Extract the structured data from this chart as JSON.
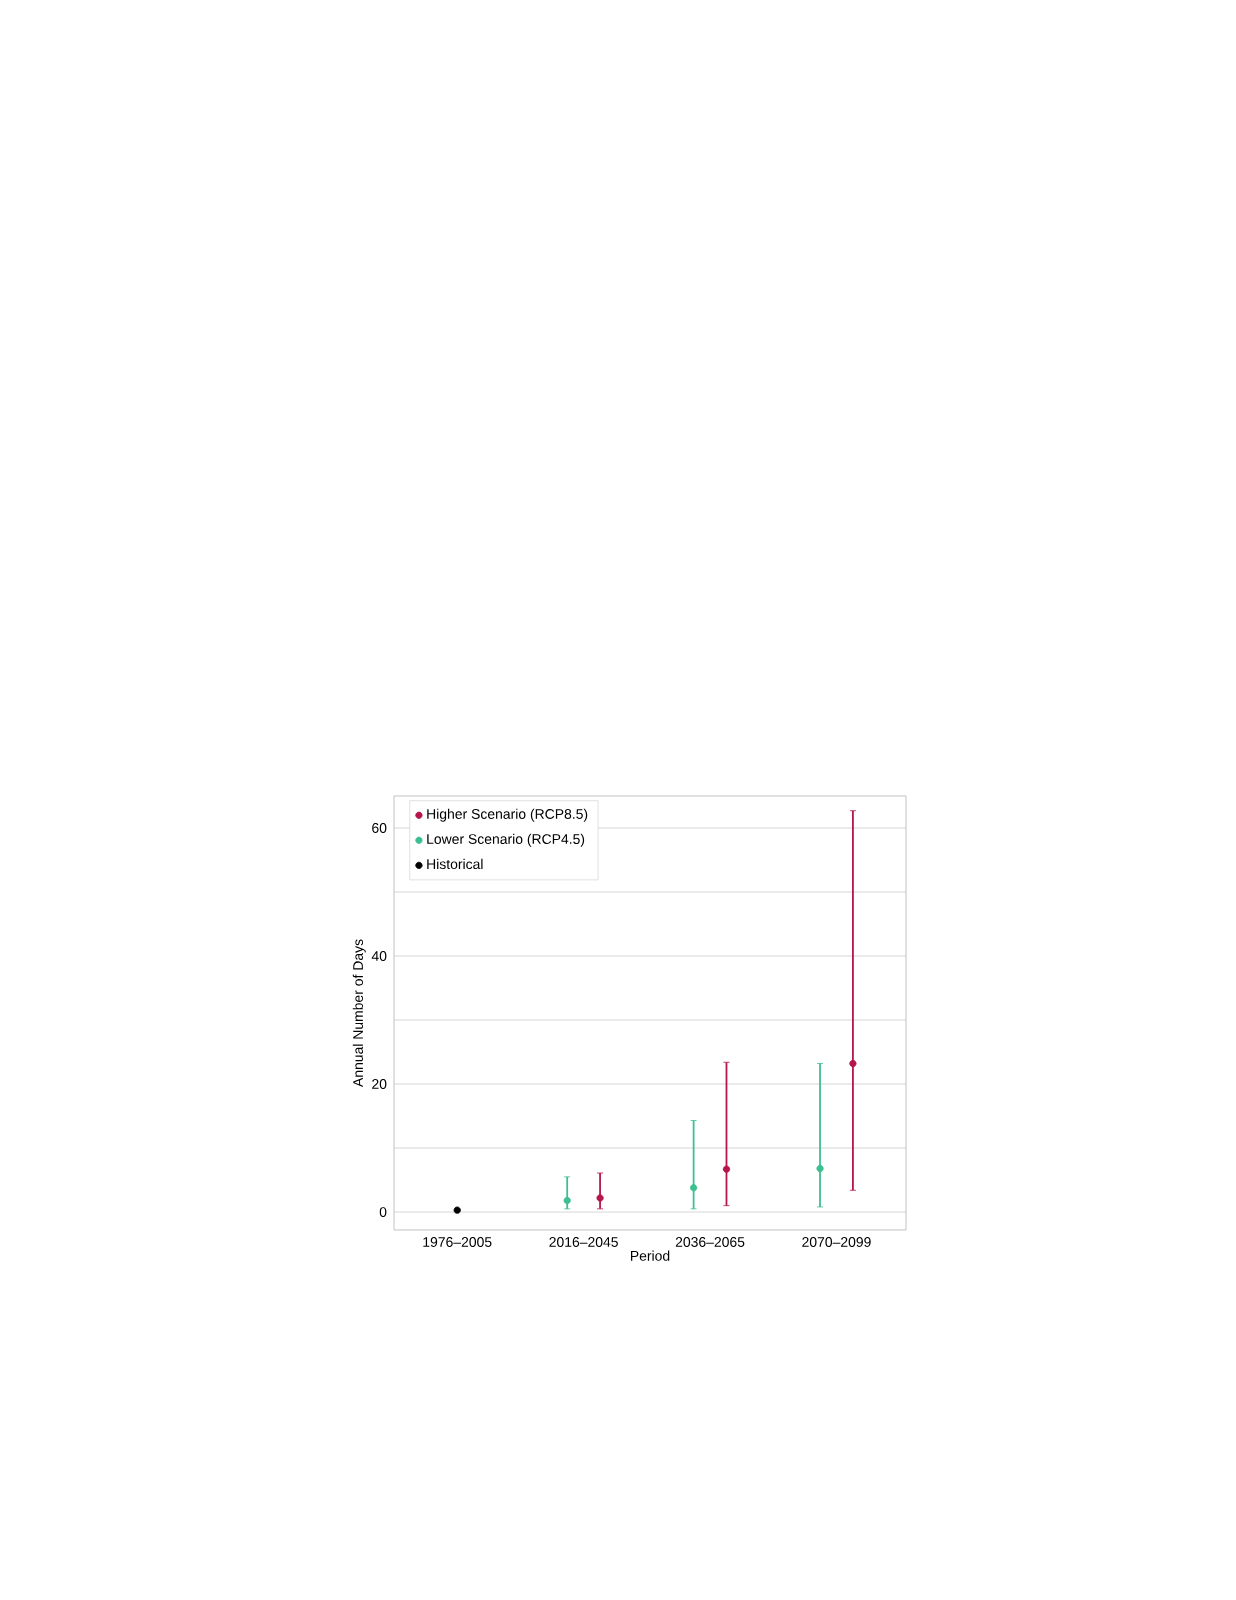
{
  "chart_data": {
    "type": "scatter",
    "xlabel": "Period",
    "ylabel": "Annual Number of Days",
    "categories": [
      "1976–2005",
      "2016–2045",
      "2036–2065",
      "2070–2099"
    ],
    "series": [
      {
        "name": "Higher Scenario (RCP8.5)",
        "color": "#b5174a",
        "values": [
          null,
          2.2,
          6.7,
          23.2
        ],
        "errors": [
          null,
          [
            0.5,
            6.1
          ],
          [
            1,
            23.4
          ],
          [
            3.4,
            62.7
          ]
        ]
      },
      {
        "name": "Lower Scenario (RCP4.5)",
        "color": "#3dbf8f",
        "values": [
          null,
          1.8,
          3.8,
          6.8
        ],
        "errors": [
          null,
          [
            0.5,
            5.5
          ],
          [
            0.5,
            14.3
          ],
          [
            0.8,
            23.2
          ]
        ]
      },
      {
        "name": "Historical",
        "color": "#000000",
        "values": [
          0.3,
          null,
          null,
          null
        ]
      }
    ],
    "ylim": [
      -2.8,
      65
    ],
    "yticks": [
      0,
      {
        "value": 10,
        "label": null
      },
      20,
      {
        "value": 30,
        "label": null
      },
      40,
      {
        "value": 50,
        "label": null
      },
      60
    ],
    "grid": "y",
    "legend": "top left",
    "marker": "circle"
  }
}
